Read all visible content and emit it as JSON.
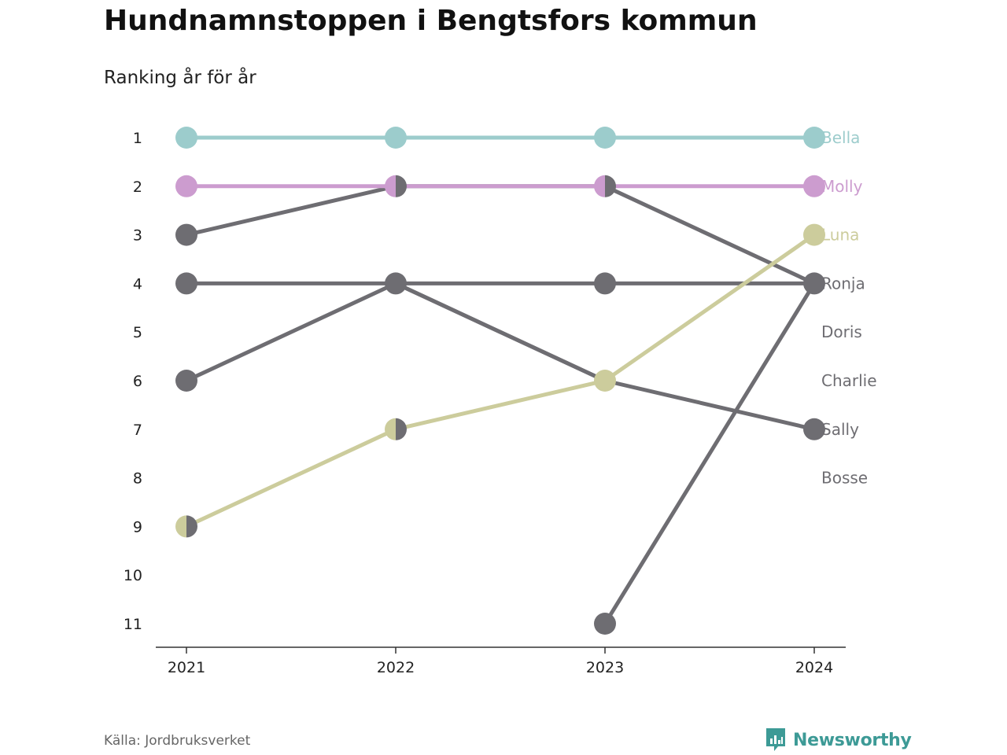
{
  "header": {
    "title": "Hundnamnstoppen i Bengtsfors kommun",
    "subtitle": "Ranking år för år"
  },
  "footer": {
    "source": "Källa: Jordbruksverket",
    "brand": "Newsworthy"
  },
  "colors": {
    "Bella": "#9ccccc",
    "Molly": "#cc9ccf",
    "Luna": "#cccc9c",
    "other": "#6e6d72",
    "axis": "#333333",
    "brand": "#3d9a96"
  },
  "chart_data": {
    "type": "line",
    "title": "Hundnamnstoppen i Bengtsfors kommun",
    "subtitle": "Ranking år för år",
    "x": [
      "2021",
      "2022",
      "2023",
      "2024"
    ],
    "y_ticks": [
      1,
      2,
      3,
      4,
      5,
      6,
      7,
      8,
      9,
      10,
      11
    ],
    "ylim": [
      1,
      11
    ],
    "y_reversed": true,
    "grid": false,
    "legend": "direct labels at right end",
    "series": [
      {
        "name": "Bella",
        "values": [
          1,
          1,
          1,
          1
        ],
        "highlight": true
      },
      {
        "name": "Molly",
        "values": [
          2,
          2,
          2,
          2
        ],
        "highlight": true
      },
      {
        "name": "Luna",
        "values": [
          9,
          7,
          6,
          3
        ],
        "highlight": true
      },
      {
        "name": "Ronja",
        "values": [
          4,
          4,
          4,
          4
        ],
        "highlight": false
      },
      {
        "name": "Doris",
        "values": [
          null,
          2,
          2,
          4
        ],
        "highlight": false
      },
      {
        "name": "Charlie",
        "values": [
          3,
          2,
          null,
          null
        ],
        "highlight": false
      },
      {
        "name": "Sally",
        "values": [
          6,
          4,
          6,
          7
        ],
        "highlight": false
      },
      {
        "name": "Bosse",
        "values": [
          null,
          4,
          6,
          null
        ],
        "highlight": false
      },
      {
        "name": "",
        "values": [
          null,
          null,
          11,
          4
        ],
        "highlight": false
      }
    ],
    "end_labels": [
      {
        "name": "Bella",
        "rank": 1,
        "color": "#9ccccc"
      },
      {
        "name": "Molly",
        "rank": 2,
        "color": "#cc9ccf"
      },
      {
        "name": "Luna",
        "rank": 3,
        "color": "#cccc9c"
      },
      {
        "name": "Ronja",
        "rank": 4,
        "color": "#6e6d72"
      },
      {
        "name": "Doris",
        "rank": 5,
        "color": "#6e6d72"
      },
      {
        "name": "Charlie",
        "rank": 6,
        "color": "#6e6d72"
      },
      {
        "name": "Sally",
        "rank": 7,
        "color": "#6e6d72"
      },
      {
        "name": "Bosse",
        "rank": 8,
        "color": "#6e6d72"
      }
    ],
    "tied_markers": [
      {
        "x": "2021",
        "rank": 9,
        "left": "#cccc9c",
        "right": "#6e6d72"
      },
      {
        "x": "2022",
        "rank": 2,
        "left": "#cc9ccf",
        "right": "#6e6d72"
      },
      {
        "x": "2022",
        "rank": 7,
        "left": "#cccc9c",
        "right": "#6e6d72"
      },
      {
        "x": "2023",
        "rank": 2,
        "left": "#cc9ccf",
        "right": "#6e6d72"
      }
    ]
  }
}
